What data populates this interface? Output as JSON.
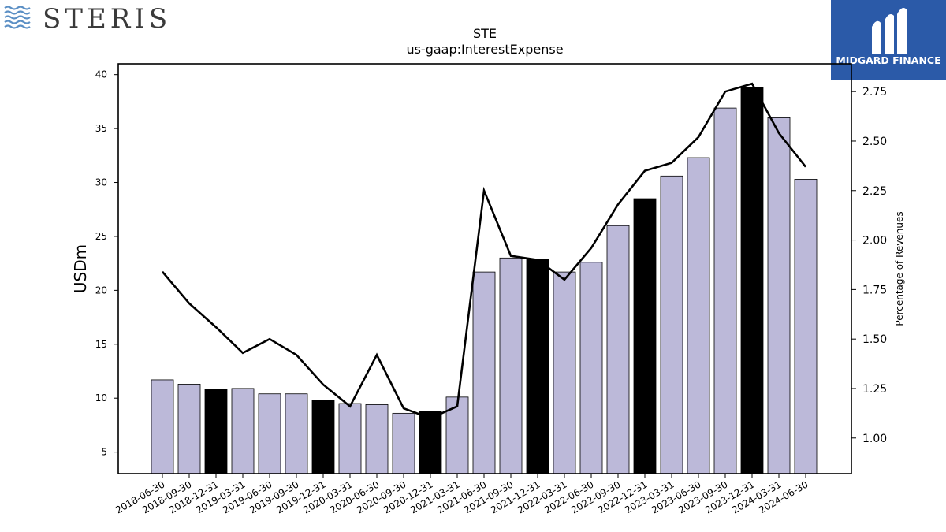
{
  "header": {
    "left_logo_text": "STERIS",
    "right_logo_text": "MIDGARD FINANCE"
  },
  "colors": {
    "bar_default": "#bcb9d9",
    "bar_highlight": "#000000",
    "line": "#000000",
    "logo_left": "#3a3a3a",
    "logo_left_waves": "#5b8fc4",
    "logo_right_bg": "#2b5aa8"
  },
  "chart_data": {
    "type": "bar",
    "title": "STE",
    "subtitle": "us-gaap:InterestExpense",
    "ylabel": "USDm",
    "y2label": "Percentage of Revenues",
    "ylim": [
      3,
      41
    ],
    "y2lim": [
      0.82,
      2.89
    ],
    "yticks": [
      5,
      10,
      15,
      20,
      25,
      30,
      35,
      40
    ],
    "y2ticks": [
      "1.00",
      "1.25",
      "1.50",
      "1.75",
      "2.00",
      "2.25",
      "2.50",
      "2.75"
    ],
    "categories": [
      "2018-06-30",
      "2018-09-30",
      "2018-12-31",
      "2019-03-31",
      "2019-06-30",
      "2019-09-30",
      "2019-12-31",
      "2020-03-31",
      "2020-06-30",
      "2020-09-30",
      "2020-12-31",
      "2021-03-31",
      "2021-06-30",
      "2021-09-30",
      "2021-12-31",
      "2022-03-31",
      "2022-06-30",
      "2022-09-30",
      "2022-12-31",
      "2023-03-31",
      "2023-06-30",
      "2023-09-30",
      "2023-12-31",
      "2024-03-31",
      "2024-06-30"
    ],
    "series": [
      {
        "type": "bar",
        "values": [
          11.7,
          11.3,
          10.8,
          10.9,
          10.4,
          10.4,
          9.8,
          9.5,
          9.4,
          8.6,
          8.8,
          10.1,
          21.7,
          23.0,
          22.9,
          21.7,
          22.6,
          26.0,
          28.5,
          30.6,
          32.3,
          36.9,
          38.8,
          36.0,
          30.3
        ],
        "highlight": [
          false,
          false,
          true,
          false,
          false,
          false,
          true,
          false,
          false,
          false,
          true,
          false,
          false,
          false,
          true,
          false,
          false,
          false,
          true,
          false,
          false,
          false,
          true,
          false,
          false
        ]
      },
      {
        "type": "line",
        "axis": "right",
        "values": [
          1.84,
          1.68,
          1.56,
          1.43,
          1.5,
          1.42,
          1.27,
          1.16,
          1.42,
          1.15,
          1.1,
          1.16,
          2.25,
          1.92,
          1.9,
          1.8,
          1.96,
          2.18,
          2.35,
          2.39,
          2.52,
          2.75,
          2.79,
          2.54,
          2.37
        ]
      }
    ]
  }
}
